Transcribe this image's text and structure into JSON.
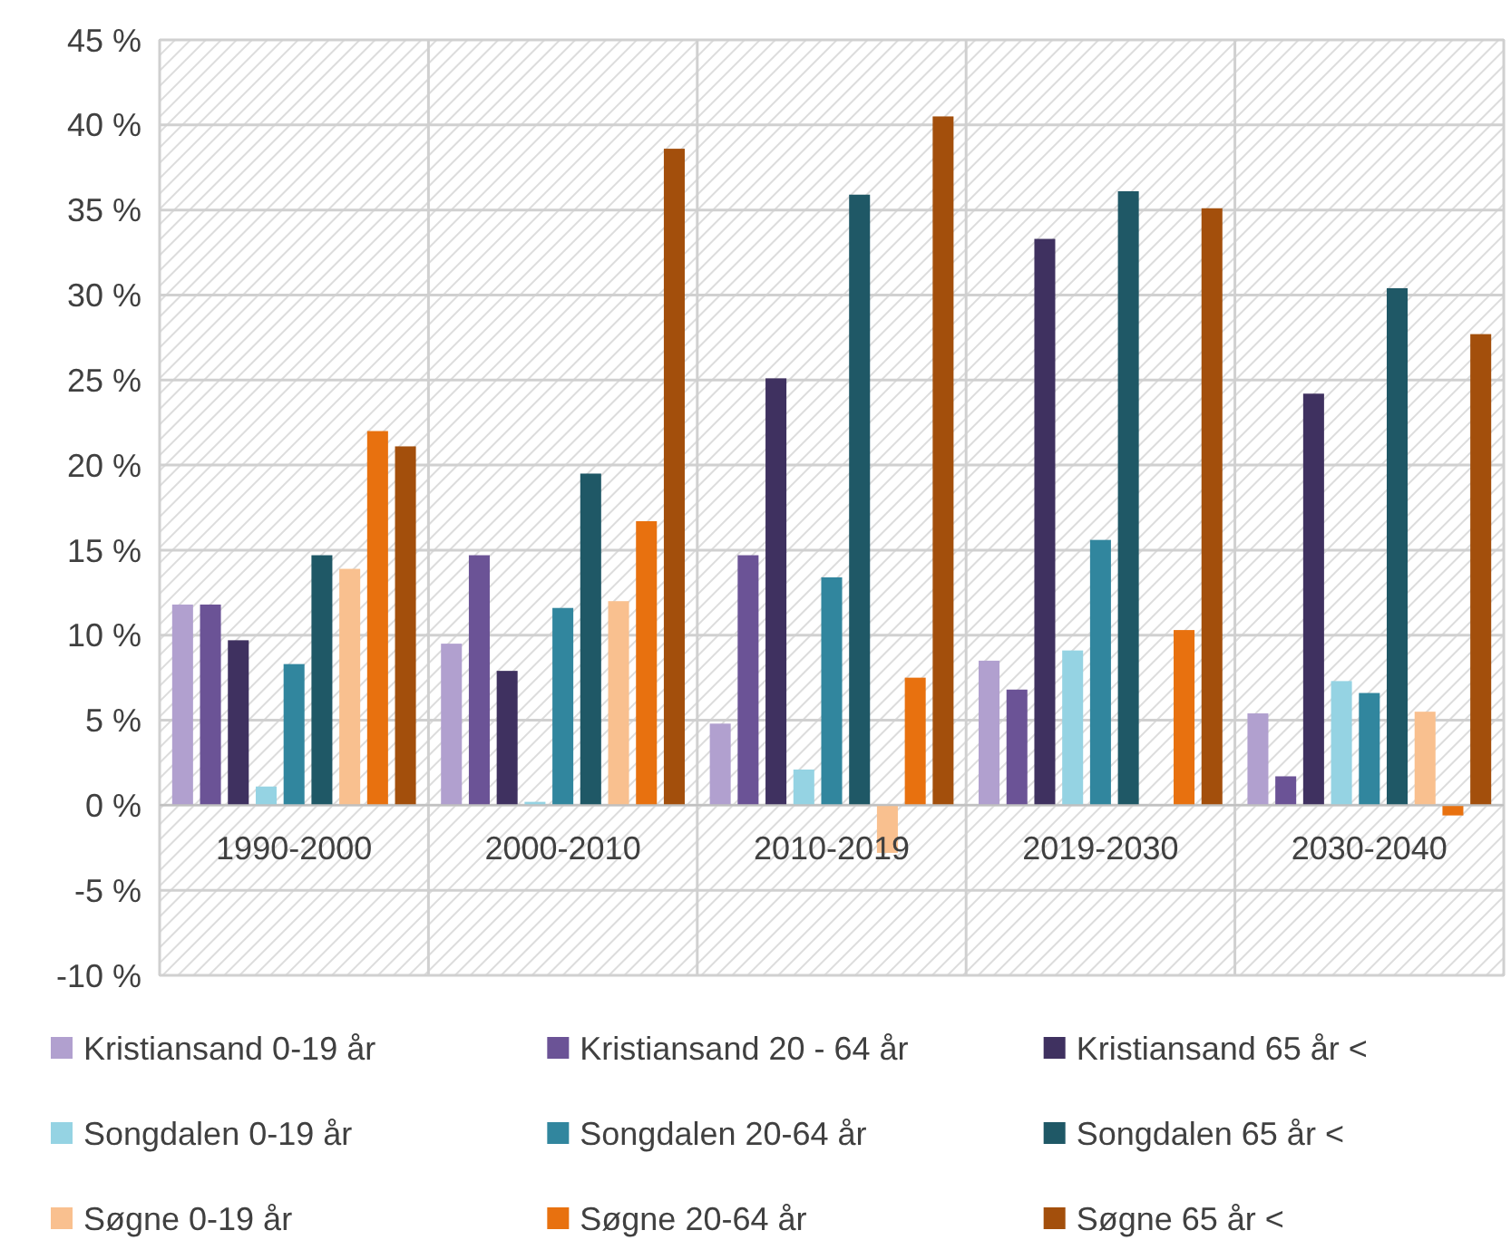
{
  "chart_data": {
    "type": "bar",
    "categories": [
      "1990-2000",
      "2000-2010",
      "2010-2019",
      "2019-2030",
      "2030-2040"
    ],
    "series": [
      {
        "name": "Kristiansand 0-19 år",
        "color": "#b1a0cf",
        "values": [
          11.8,
          9.5,
          4.8,
          8.5,
          5.4
        ]
      },
      {
        "name": "Kristiansand 20 - 64 år",
        "color": "#6b5396",
        "values": [
          11.8,
          14.7,
          14.7,
          6.8,
          1.7
        ]
      },
      {
        "name": "Kristiansand 65 år <",
        "color": "#3f3160",
        "values": [
          9.7,
          7.9,
          25.1,
          33.3,
          24.2
        ]
      },
      {
        "name": "Songdalen 0-19 år",
        "color": "#95d3e3",
        "values": [
          1.1,
          0.2,
          2.1,
          9.1,
          7.3
        ]
      },
      {
        "name": "Songdalen 20-64 år",
        "color": "#31869e",
        "values": [
          8.3,
          11.6,
          13.4,
          15.6,
          6.6
        ]
      },
      {
        "name": "Songdalen 65 år <",
        "color": "#1f5866",
        "values": [
          14.7,
          19.5,
          35.9,
          36.1,
          30.4
        ]
      },
      {
        "name": "Søgne 0-19 år",
        "color": "#f9c08f",
        "values": [
          13.9,
          12.0,
          -2.8,
          null,
          5.5
        ]
      },
      {
        "name": "Søgne 20-64 år",
        "color": "#e8710f",
        "values": [
          22.0,
          16.7,
          7.5,
          10.3,
          -0.6
        ]
      },
      {
        "name": "Søgne 65 år <",
        "color": "#a34f0c",
        "values": [
          21.1,
          38.6,
          40.5,
          35.1,
          27.7
        ]
      }
    ],
    "ylim": [
      -10,
      45
    ],
    "yticks": [
      {
        "value": -10,
        "label": "-10 %"
      },
      {
        "value": -5,
        "label": "-5 %"
      },
      {
        "value": 0,
        "label": "0 %"
      },
      {
        "value": 5,
        "label": "5 %"
      },
      {
        "value": 10,
        "label": "10 %"
      },
      {
        "value": 15,
        "label": "15 %"
      },
      {
        "value": 20,
        "label": "20 %"
      },
      {
        "value": 25,
        "label": "25 %"
      },
      {
        "value": 30,
        "label": "30 %"
      },
      {
        "value": 35,
        "label": "35 %"
      },
      {
        "value": 40,
        "label": "40 %"
      },
      {
        "value": 45,
        "label": "45 %"
      }
    ],
    "grid": true,
    "legend": "bottom"
  }
}
